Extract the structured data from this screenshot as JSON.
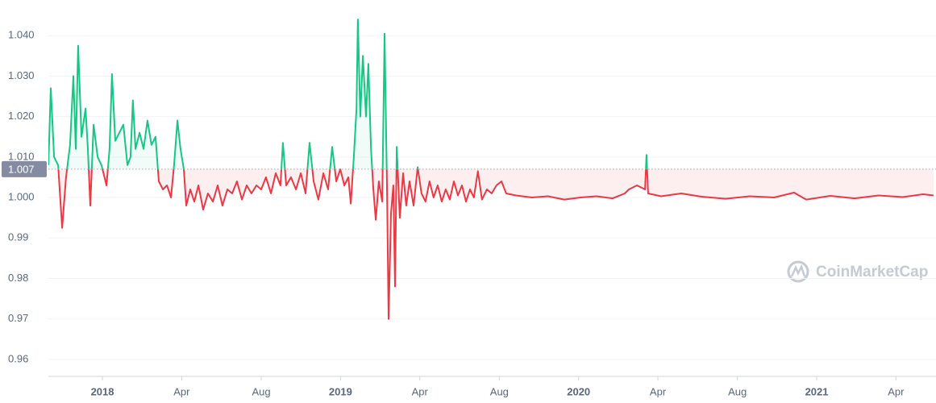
{
  "chart_data": {
    "type": "line",
    "watermark": "CoinMarketCap",
    "baseline": 1.007,
    "grid": true,
    "ylim": [
      0.9558,
      1.0488
    ],
    "yticks": [
      0.96,
      0.97,
      0.98,
      0.99,
      {
        "value": 1.0,
        "label": "1.000"
      },
      {
        "value": 1.01,
        "label": "1.010"
      },
      {
        "value": 1.02,
        "label": "1.020"
      },
      {
        "value": 1.03,
        "label": "1.030"
      },
      {
        "value": 1.04,
        "label": "1.040"
      }
    ],
    "xlim": [
      2017.773,
      2021.501
    ],
    "xticks": [
      {
        "value": 2018,
        "label": "2018"
      },
      {
        "value": 2018.333,
        "label": "Apr"
      },
      {
        "value": 2018.667,
        "label": "Aug"
      },
      {
        "value": 2019,
        "label": "2019"
      },
      {
        "value": 2019.333,
        "label": "Apr"
      },
      {
        "value": 2019.667,
        "label": "Aug"
      },
      {
        "value": 2020,
        "label": "2020"
      },
      {
        "value": 2020.333,
        "label": "Apr"
      },
      {
        "value": 2020.667,
        "label": "Aug"
      },
      {
        "value": 2021,
        "label": "2021"
      },
      {
        "value": 2021.333,
        "label": "Apr"
      }
    ],
    "colors": {
      "above": "#16c784",
      "below": "#ea3943"
    },
    "x": [
      2017.773,
      2017.783,
      2017.797,
      2017.814,
      2017.831,
      2017.847,
      2017.864,
      2017.878,
      2017.888,
      2017.898,
      2017.912,
      2017.929,
      2017.939,
      2017.949,
      2017.963,
      2017.98,
      2017.996,
      2018.017,
      2018.03,
      2018.04,
      2018.054,
      2018.071,
      2018.088,
      2018.105,
      2018.118,
      2018.128,
      2018.139,
      2018.156,
      2018.173,
      2018.189,
      2018.206,
      2018.223,
      2018.237,
      2018.254,
      2018.271,
      2018.288,
      2018.301,
      2018.315,
      2018.328,
      2018.342,
      2018.352,
      2018.369,
      2018.386,
      2018.403,
      2018.423,
      2018.443,
      2018.464,
      2018.484,
      2018.504,
      2018.525,
      2018.545,
      2018.565,
      2018.586,
      2018.606,
      2018.626,
      2018.647,
      2018.667,
      2018.687,
      2018.708,
      2018.728,
      2018.748,
      2018.758,
      2018.772,
      2018.792,
      2018.813,
      2018.833,
      2018.853,
      2018.87,
      2018.887,
      2018.907,
      2018.928,
      2018.948,
      2018.965,
      2018.982,
      2018.999,
      2019.016,
      2019.033,
      2019.043,
      2019.056,
      2019.067,
      2019.073,
      2019.083,
      2019.094,
      2019.107,
      2019.117,
      2019.128,
      2019.138,
      2019.148,
      2019.161,
      2019.175,
      2019.185,
      2019.195,
      2019.202,
      2019.212,
      2019.222,
      2019.229,
      2019.236,
      2019.249,
      2019.263,
      2019.276,
      2019.29,
      2019.307,
      2019.324,
      2019.34,
      2019.357,
      2019.374,
      2019.391,
      2019.408,
      2019.425,
      2019.442,
      2019.459,
      2019.476,
      2019.493,
      2019.51,
      2019.527,
      2019.544,
      2019.56,
      2019.577,
      2019.594,
      2019.615,
      2019.635,
      2019.655,
      2019.676,
      2019.696,
      2019.737,
      2019.804,
      2019.871,
      2019.94,
      2020.008,
      2020.075,
      2020.143,
      2020.194,
      2020.211,
      2020.245,
      2020.279,
      2020.285,
      2020.292,
      2020.346,
      2020.431,
      2020.516,
      2020.617,
      2020.719,
      2020.821,
      2020.905,
      2020.956,
      2021.057,
      2021.159,
      2021.26,
      2021.362,
      2021.447,
      2021.491
    ],
    "values": [
      1.008,
      1.027,
      1.01,
      1.008,
      0.9925,
      1.005,
      1.013,
      1.03,
      1.012,
      1.0375,
      1.015,
      1.022,
      1.012,
      0.998,
      1.018,
      1.01,
      1.008,
      1.003,
      1.012,
      1.0305,
      1.014,
      1.016,
      1.018,
      1.008,
      1.01,
      1.024,
      1.012,
      1.016,
      1.012,
      1.019,
      1.013,
      1.015,
      1.004,
      1.002,
      1.003,
      1.0,
      1.008,
      1.019,
      1.012,
      1.007,
      0.998,
      1.002,
      0.999,
      1.003,
      0.997,
      1.001,
      0.999,
      1.003,
      0.998,
      1.002,
      1.001,
      1.004,
      0.9995,
      1.003,
      1.001,
      1.003,
      1.002,
      1.005,
      1.001,
      1.006,
      1.003,
      1.0135,
      1.003,
      1.005,
      1.002,
      1.006,
      1.001,
      1.0135,
      1.004,
      0.9995,
      1.006,
      1.002,
      1.0125,
      1.004,
      1.007,
      1.003,
      1.005,
      0.9985,
      1.01,
      1.022,
      1.044,
      1.02,
      1.035,
      1.02,
      1.033,
      1.012,
      1.002,
      0.9945,
      1.004,
      0.999,
      1.0405,
      1.003,
      0.97,
      0.996,
      1.003,
      0.978,
      1.0125,
      0.995,
      1.006,
      0.998,
      1.004,
      0.998,
      1.0075,
      1.001,
      0.999,
      1.004,
      1.0,
      1.003,
      0.999,
      1.002,
      0.9995,
      1.004,
      1.0005,
      1.003,
      0.999,
      1.002,
      1.0,
      1.0065,
      0.9995,
      1.002,
      1.001,
      1.003,
      1.004,
      1.001,
      1.0005,
      1.0,
      1.0003,
      0.9995,
      1.0,
      1.0003,
      0.9998,
      1.001,
      1.002,
      1.003,
      1.002,
      1.0105,
      1.001,
      1.0003,
      1.001,
      1.0002,
      0.9997,
      1.0003,
      1.0,
      1.0012,
      0.9995,
      1.0004,
      0.9998,
      1.0005,
      1.0001,
      1.0008,
      1.0005
    ]
  }
}
